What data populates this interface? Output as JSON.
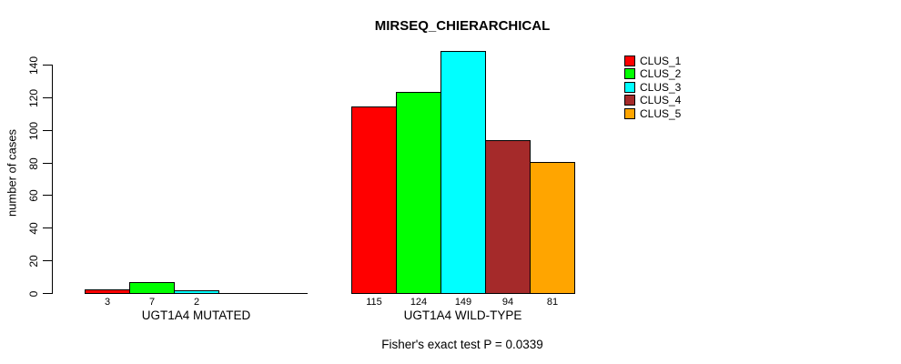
{
  "chart": {
    "title": "MIRSEQ_CHIERARCHICAL",
    "subtitle": "Fisher's exact test P = 0.0339",
    "ylabel": "number of cases"
  },
  "chart_data": {
    "type": "bar",
    "title": "MIRSEQ_CHIERARCHICAL",
    "subtitle": "Fisher's exact test P = 0.0339",
    "xlabel": "",
    "ylabel": "number of cases",
    "ylim": [
      0,
      140
    ],
    "yticks": [
      0,
      20,
      40,
      60,
      80,
      100,
      120,
      140
    ],
    "grid": false,
    "legend_position": "top-right",
    "bar_borders": "#000000",
    "categories": [
      "UGT1A4 MUTATED",
      "UGT1A4 WILD-TYPE"
    ],
    "series": [
      {
        "name": "CLUS_1",
        "color": "#FF0000",
        "values": [
          3,
          115
        ]
      },
      {
        "name": "CLUS_2",
        "color": "#00FF00",
        "values": [
          7,
          124
        ]
      },
      {
        "name": "CLUS_3",
        "color": "#00FFFF",
        "values": [
          2,
          149
        ]
      },
      {
        "name": "CLUS_4",
        "color": "#A52A2A",
        "values": [
          0,
          94
        ]
      },
      {
        "name": "CLUS_5",
        "color": "#FFA500",
        "values": [
          0,
          81
        ]
      }
    ],
    "value_labels": {
      "shown": true,
      "hide_zeros": true
    }
  }
}
